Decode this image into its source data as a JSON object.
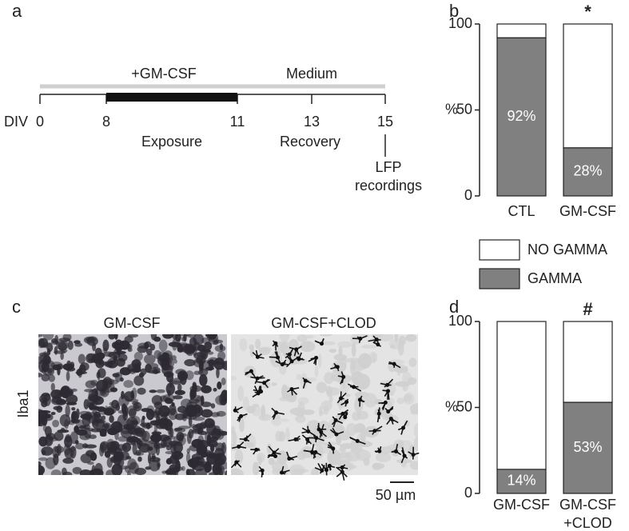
{
  "panels": {
    "a": "a",
    "b": "b",
    "c": "c",
    "d": "d"
  },
  "timeline": {
    "treatment_label": "+GM-CSF",
    "medium_label": "Medium",
    "axis_label": "DIV",
    "ticks": [
      0,
      8,
      11,
      13,
      15
    ],
    "exposure": [
      8,
      11
    ],
    "phases": [
      "Exposure",
      "Recovery"
    ],
    "recording_label": "LFP\nrecordings"
  },
  "images": {
    "titles": [
      "GM-CSF",
      "GM-CSF+CLOD"
    ],
    "stain_label": "Iba1",
    "scale_bar_label": "50 µm"
  },
  "chart_data": [
    {
      "type": "bar",
      "stacked": true,
      "ylabel": "%",
      "categories": [
        "CTL",
        "GM-CSF"
      ],
      "series": [
        {
          "name": "NO GAMMA",
          "color": "#ffffff",
          "values": [
            8,
            72
          ]
        },
        {
          "name": "GAMMA",
          "color": "#808080",
          "values": [
            92,
            28
          ],
          "value_labels": [
            "92%",
            "28%"
          ]
        }
      ],
      "annotations": [
        null,
        "*"
      ],
      "ylim": [
        0,
        100
      ],
      "yticks": [
        0,
        50,
        100
      ]
    },
    {
      "type": "bar",
      "stacked": true,
      "ylabel": "%",
      "categories": [
        "GM-CSF",
        "GM-CSF\n+CLOD"
      ],
      "series": [
        {
          "color": "#ffffff",
          "values": [
            86,
            47
          ]
        },
        {
          "color": "#808080",
          "values": [
            14,
            53
          ],
          "value_labels": [
            "14%",
            "53%"
          ]
        }
      ],
      "annotations": [
        null,
        "#"
      ],
      "ylim": [
        0,
        100
      ],
      "yticks": [
        0,
        50,
        100
      ]
    }
  ]
}
